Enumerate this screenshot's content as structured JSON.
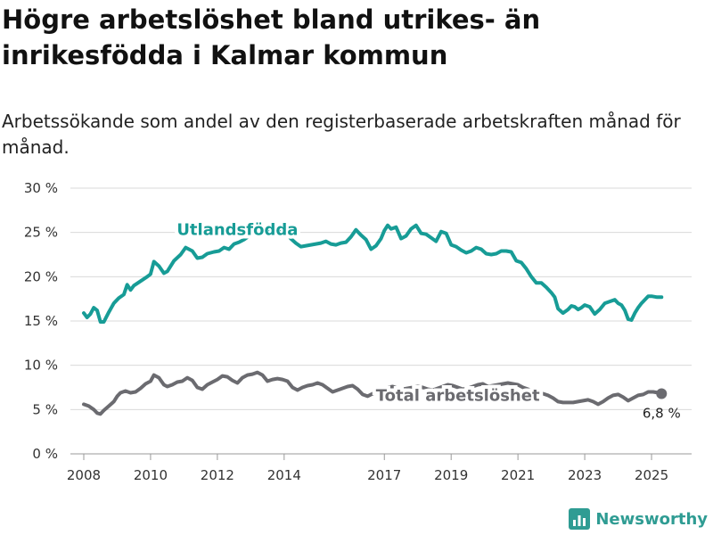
{
  "title": "Högre arbetslöshet bland utrikes- än inrikesfödda i Kalmar kommun",
  "subtitle": "Arbetssökande som andel av den registerbaserade arbetskraften månad för månad.",
  "brand": {
    "name": "Newsworthy",
    "icon": "bar-chart-logo-icon"
  },
  "chart_data": {
    "type": "line",
    "ylim": [
      0,
      30
    ],
    "y_ticks": [
      0,
      5,
      10,
      15,
      20,
      25,
      30
    ],
    "y_tick_labels": [
      "0 %",
      "5 %",
      "10 %",
      "15 %",
      "20 %",
      "25 %",
      "30 %"
    ],
    "xlim": [
      2007.6,
      2026.2
    ],
    "x_ticks": [
      2008,
      2010,
      2012,
      2014,
      2017,
      2019,
      2021,
      2023,
      2025
    ],
    "x_tick_labels": [
      "2008",
      "2010",
      "2012",
      "2014",
      "2017",
      "2019",
      "2021",
      "2023",
      "2025"
    ],
    "grid": "horizontal",
    "series": [
      {
        "name": "Utlandsfödda",
        "color": "#179c96",
        "x": [
          2008.0,
          2008.1,
          2008.2,
          2008.3,
          2008.4,
          2008.5,
          2008.6,
          2008.75,
          2008.9,
          2009.05,
          2009.2,
          2009.3,
          2009.4,
          2009.5,
          2009.7,
          2009.9,
          2010.0,
          2010.1,
          2010.25,
          2010.4,
          2010.5,
          2010.7,
          2010.9,
          2011.05,
          2011.25,
          2011.4,
          2011.55,
          2011.7,
          2011.9,
          2012.05,
          2012.2,
          2012.35,
          2012.5,
          2012.65,
          2012.8,
          2012.95,
          2013.1,
          2013.25,
          2013.4,
          2013.6,
          2013.8,
          2014.0,
          2014.2,
          2014.35,
          2014.5,
          2014.65,
          2014.8,
          2014.95,
          2015.1,
          2015.25,
          2015.4,
          2015.55,
          2015.7,
          2015.85,
          2016.0,
          2016.15,
          2016.3,
          2016.45,
          2016.6,
          2016.75,
          2016.9,
          2017.0,
          2017.1,
          2017.2,
          2017.35,
          2017.5,
          2017.65,
          2017.8,
          2017.95,
          2018.1,
          2018.25,
          2018.4,
          2018.55,
          2018.7,
          2018.85,
          2019.0,
          2019.15,
          2019.3,
          2019.45,
          2019.6,
          2019.75,
          2019.9,
          2020.05,
          2020.2,
          2020.35,
          2020.5,
          2020.65,
          2020.8,
          2020.95,
          2021.1,
          2021.25,
          2021.4,
          2021.55,
          2021.7,
          2021.85,
          2022.0,
          2022.1,
          2022.2,
          2022.35,
          2022.5,
          2022.6,
          2022.7,
          2022.8,
          2022.9,
          2023.0,
          2023.15,
          2023.3,
          2023.45,
          2023.6,
          2023.75,
          2023.9,
          2024.0,
          2024.1,
          2024.2,
          2024.3,
          2024.4,
          2024.5,
          2024.6,
          2024.7,
          2024.8,
          2024.9,
          2025.0,
          2025.15,
          2025.3
        ],
        "values": [
          15.9,
          15.4,
          15.8,
          16.5,
          16.2,
          14.9,
          14.9,
          16.0,
          17.0,
          17.6,
          18.0,
          19.1,
          18.5,
          19.0,
          19.5,
          20.0,
          20.3,
          21.7,
          21.2,
          20.4,
          20.6,
          21.8,
          22.5,
          23.3,
          22.9,
          22.1,
          22.2,
          22.6,
          22.8,
          22.9,
          23.3,
          23.1,
          23.7,
          23.9,
          24.2,
          24.6,
          24.8,
          24.8,
          25.0,
          25.1,
          25.2,
          25.2,
          24.3,
          23.8,
          23.4,
          23.5,
          23.6,
          23.7,
          23.8,
          24.0,
          23.7,
          23.6,
          23.8,
          23.9,
          24.5,
          25.3,
          24.7,
          24.2,
          23.1,
          23.5,
          24.3,
          25.2,
          25.8,
          25.4,
          25.6,
          24.3,
          24.6,
          25.4,
          25.8,
          24.9,
          24.8,
          24.4,
          24.0,
          25.1,
          24.9,
          23.6,
          23.4,
          23.0,
          22.7,
          22.9,
          23.3,
          23.1,
          22.6,
          22.5,
          22.6,
          22.9,
          22.9,
          22.8,
          21.8,
          21.6,
          20.9,
          20.0,
          19.3,
          19.3,
          18.8,
          18.2,
          17.7,
          16.4,
          15.9,
          16.3,
          16.7,
          16.6,
          16.3,
          16.5,
          16.8,
          16.6,
          15.8,
          16.3,
          17.0,
          17.2,
          17.4,
          17.0,
          16.8,
          16.2,
          15.2,
          15.1,
          15.9,
          16.5,
          17.0,
          17.4,
          17.8,
          17.8,
          17.7,
          17.7
        ]
      },
      {
        "name": "Total arbetslöshet",
        "color": "#6b6b70",
        "end_label": "6,8 %",
        "x": [
          2008.0,
          2008.15,
          2008.3,
          2008.4,
          2008.5,
          2008.6,
          2008.75,
          2008.9,
          2009.0,
          2009.1,
          2009.25,
          2009.4,
          2009.55,
          2009.7,
          2009.85,
          2010.0,
          2010.1,
          2010.25,
          2010.4,
          2010.5,
          2010.65,
          2010.8,
          2010.95,
          2011.1,
          2011.25,
          2011.4,
          2011.55,
          2011.7,
          2011.85,
          2012.0,
          2012.15,
          2012.3,
          2012.45,
          2012.6,
          2012.75,
          2012.9,
          2013.05,
          2013.2,
          2013.35,
          2013.5,
          2013.65,
          2013.8,
          2013.95,
          2014.1,
          2014.25,
          2014.4,
          2014.55,
          2014.7,
          2014.85,
          2015.0,
          2015.15,
          2015.3,
          2015.45,
          2015.6,
          2015.75,
          2015.9,
          2016.05,
          2016.2,
          2016.35,
          2016.5,
          2016.65,
          2016.8,
          2016.95,
          2017.1,
          2017.25,
          2017.4,
          2017.55,
          2017.7,
          2017.85,
          2018.0,
          2018.15,
          2018.3,
          2018.45,
          2018.6,
          2018.75,
          2018.9,
          2019.05,
          2019.2,
          2019.35,
          2019.5,
          2019.65,
          2019.8,
          2019.95,
          2020.1,
          2020.25,
          2020.4,
          2020.55,
          2020.7,
          2020.85,
          2021.0,
          2021.15,
          2021.3,
          2021.45,
          2021.6,
          2021.75,
          2021.9,
          2022.05,
          2022.2,
          2022.35,
          2022.5,
          2022.65,
          2022.8,
          2022.95,
          2023.1,
          2023.25,
          2023.4,
          2023.55,
          2023.7,
          2023.85,
          2024.0,
          2024.15,
          2024.3,
          2024.45,
          2024.6,
          2024.75,
          2024.9,
          2025.05,
          2025.2,
          2025.3
        ],
        "values": [
          5.6,
          5.4,
          5.0,
          4.6,
          4.5,
          4.9,
          5.4,
          5.9,
          6.5,
          6.9,
          7.1,
          6.9,
          7.0,
          7.4,
          7.9,
          8.2,
          8.9,
          8.6,
          7.8,
          7.6,
          7.8,
          8.1,
          8.2,
          8.6,
          8.3,
          7.5,
          7.3,
          7.8,
          8.1,
          8.4,
          8.8,
          8.7,
          8.3,
          8.0,
          8.6,
          8.9,
          9.0,
          9.2,
          8.9,
          8.2,
          8.4,
          8.5,
          8.4,
          8.2,
          7.5,
          7.2,
          7.5,
          7.7,
          7.8,
          8.0,
          7.8,
          7.4,
          7.0,
          7.2,
          7.4,
          7.6,
          7.7,
          7.3,
          6.7,
          6.5,
          6.8,
          7.0,
          7.3,
          7.5,
          7.6,
          7.4,
          7.3,
          7.4,
          7.5,
          7.6,
          7.5,
          7.3,
          7.2,
          7.4,
          7.6,
          7.8,
          7.7,
          7.5,
          7.3,
          7.4,
          7.6,
          7.8,
          7.9,
          7.6,
          7.7,
          7.8,
          7.9,
          8.0,
          7.9,
          7.8,
          7.5,
          7.3,
          7.1,
          7.0,
          6.8,
          6.6,
          6.3,
          5.9,
          5.8,
          5.8,
          5.8,
          5.9,
          6.0,
          6.1,
          5.9,
          5.6,
          5.9,
          6.3,
          6.6,
          6.7,
          6.4,
          6.0,
          6.3,
          6.6,
          6.7,
          7.0,
          7.0,
          6.9,
          6.8
        ]
      }
    ]
  }
}
